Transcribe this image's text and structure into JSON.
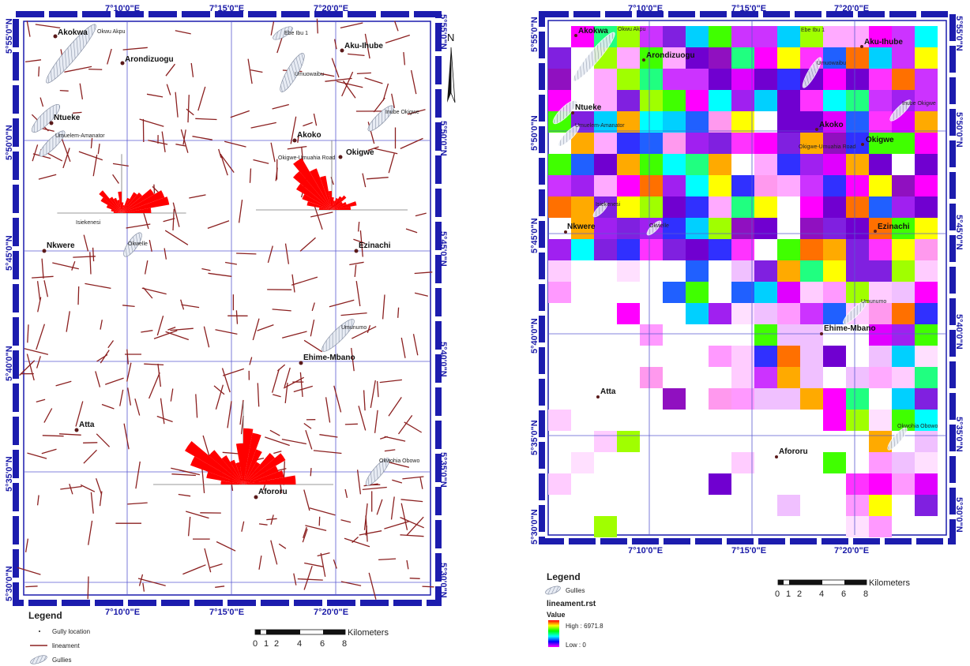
{
  "left_map": {
    "top_ticks": [
      "7°10'0\"E",
      "7°15'0\"E",
      "7°20'0\"E"
    ],
    "bottom_ticks": [
      "7°10'0\"E",
      "7°15'0\"E",
      "7°20'0\"E"
    ],
    "left_ticks": [
      "5°55'0\"N",
      "5°50'0\"N",
      "5°45'0\"N",
      "5°40'0\"N",
      "5°35'0\"N",
      "5°30'0\"N"
    ],
    "right_ticks": [
      "5°55'0\"N",
      "5°50'0\"N",
      "5°45'0\"N",
      "5°40'0\"N",
      "5°35'0\"N",
      "5°30'0\"N"
    ],
    "towns": [
      "Akokwa",
      "Arondizuogu",
      "Aku-Ihube",
      "Ntueke",
      "Akoko",
      "Okigwe",
      "Nkwere",
      "Ezinachi",
      "Ehime-Mbano",
      "Atta",
      "Afororu"
    ],
    "places": [
      "Okwu Akpu",
      "Ebe Ibu 1",
      "Umuowaibu",
      "Umuelem-Amanator",
      "Isiekenesi",
      "Okwelle",
      "Okigwe-Umuahia Road",
      "Inube Okigwe",
      "Umunumo",
      "Okwohia Obowo"
    ],
    "north_label": "N",
    "legend": {
      "title": "Legend",
      "items": [
        "Gully location",
        "lineament",
        "Gullies"
      ]
    },
    "scalebar": {
      "labels": [
        "0",
        "1",
        "2",
        "4",
        "6",
        "8"
      ],
      "unit": "Kilometers"
    }
  },
  "right_map": {
    "top_ticks": [
      "7°10'0\"E",
      "7°15'0\"E",
      "7°20'0\"E"
    ],
    "bottom_ticks": [
      "7°10'0\"E",
      "7°15'0\"E",
      "7°20'0\"E"
    ],
    "left_ticks": [
      "5°55'0\"N",
      "5°50'0\"N",
      "5°45'0\"N",
      "5°40'0\"N",
      "5°35'0\"N",
      "5°30'0\"N"
    ],
    "right_ticks": [
      "5°55'0\"N",
      "5°50'0\"N",
      "5°45'0\"N",
      "5°40'0\"N",
      "5°35'0\"N",
      "5°30'0\"N"
    ],
    "towns": [
      "Akokwa",
      "Arondizuogu",
      "Aku-Ihube",
      "Ntueke",
      "Akoko",
      "Okigwe",
      "Ezinachi",
      "Nkwere",
      "Ehime-Mbano",
      "Atta",
      "Afororu"
    ],
    "places": [
      "Okwu Akpu",
      "Ebe Ibu 1",
      "Umuowaibu",
      "Inube Okigwe",
      "Umuelem-Amanator",
      "Okigwe-Umuahia Road",
      "Isiekenesi",
      "Okwelle",
      "Umunumo",
      "Okwohia Obowo"
    ],
    "legend": {
      "title": "Legend",
      "gullies": "Gullies",
      "raster_name": "lineament.rst",
      "value_label": "Value",
      "high": "High : 6971.8",
      "low": "Low : 0"
    },
    "scalebar": {
      "labels": [
        "0",
        "1",
        "2",
        "4",
        "6",
        "8"
      ],
      "unit": "Kilometers"
    }
  },
  "colors": {
    "frame": "#1c1cae",
    "grid": "#5a5ad0",
    "lineament": "#8b2020",
    "rose": "#ff0000",
    "dot": "#5a1a1a"
  }
}
